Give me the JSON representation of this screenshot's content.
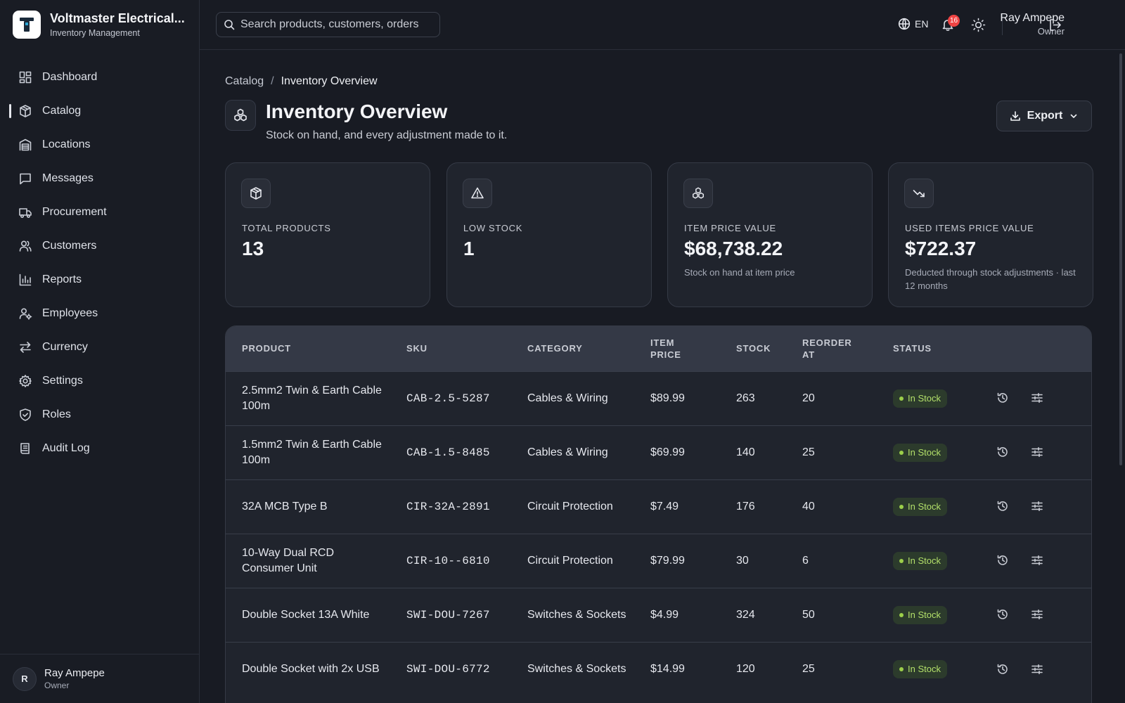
{
  "brand": {
    "name": "Voltmaster Electrical...",
    "subtitle": "Inventory Management"
  },
  "sidebar": {
    "items": [
      {
        "label": "Dashboard",
        "icon": "dashboard-icon",
        "active": false
      },
      {
        "label": "Catalog",
        "icon": "package-icon",
        "active": true
      },
      {
        "label": "Locations",
        "icon": "warehouse-icon",
        "active": false
      },
      {
        "label": "Messages",
        "icon": "message-icon",
        "active": false
      },
      {
        "label": "Procurement",
        "icon": "truck-icon",
        "active": false
      },
      {
        "label": "Customers",
        "icon": "users-icon",
        "active": false
      },
      {
        "label": "Reports",
        "icon": "bar-chart-icon",
        "active": false
      },
      {
        "label": "Employees",
        "icon": "user-cog-icon",
        "active": false
      },
      {
        "label": "Currency",
        "icon": "exchange-icon",
        "active": false
      },
      {
        "label": "Settings",
        "icon": "gear-icon",
        "active": false
      },
      {
        "label": "Roles",
        "icon": "shield-icon",
        "active": false
      },
      {
        "label": "Audit Log",
        "icon": "log-icon",
        "active": false
      }
    ],
    "user": {
      "initial": "R",
      "name": "Ray Ampepe",
      "role": "Owner"
    }
  },
  "topbar": {
    "search_placeholder": "Search products, customers, orders",
    "language": "EN",
    "notification_count": "16",
    "user": {
      "name": "Ray Ampepe",
      "role": "Owner"
    }
  },
  "breadcrumb": {
    "parent": "Catalog",
    "separator": "/",
    "current": "Inventory Overview"
  },
  "page": {
    "title": "Inventory Overview",
    "subtitle": "Stock on hand, and every adjustment made to it.",
    "export_label": "Export"
  },
  "cards": [
    {
      "label": "TOTAL PRODUCTS",
      "value": "13",
      "note": "",
      "icon": "package-icon"
    },
    {
      "label": "LOW STOCK",
      "value": "1",
      "note": "",
      "icon": "warning-icon"
    },
    {
      "label": "ITEM PRICE VALUE",
      "value": "$68,738.22",
      "note": "Stock on hand at item price",
      "icon": "boxes-icon"
    },
    {
      "label": "USED ITEMS PRICE VALUE",
      "value": "$722.37",
      "note": "Deducted through stock adjustments · last 12 months",
      "icon": "trending-down-icon"
    }
  ],
  "table": {
    "headers": {
      "product": "PRODUCT",
      "sku": "SKU",
      "category": "CATEGORY",
      "item_price": "ITEM PRICE",
      "stock": "STOCK",
      "reorder_at": "REORDER AT",
      "status": "STATUS"
    },
    "rows": [
      {
        "product": "2.5mm2 Twin & Earth Cable 100m",
        "sku": "CAB-2.5-5287",
        "category": "Cables & Wiring",
        "item_price": "$89.99",
        "stock": "263",
        "reorder_at": "20",
        "status": "In Stock"
      },
      {
        "product": "1.5mm2 Twin & Earth Cable 100m",
        "sku": "CAB-1.5-8485",
        "category": "Cables & Wiring",
        "item_price": "$69.99",
        "stock": "140",
        "reorder_at": "25",
        "status": "In Stock"
      },
      {
        "product": "32A MCB Type B",
        "sku": "CIR-32A-2891",
        "category": "Circuit Protection",
        "item_price": "$7.49",
        "stock": "176",
        "reorder_at": "40",
        "status": "In Stock"
      },
      {
        "product": "10-Way Dual RCD Consumer Unit",
        "sku": "CIR-10--6810",
        "category": "Circuit Protection",
        "item_price": "$79.99",
        "stock": "30",
        "reorder_at": "6",
        "status": "In Stock"
      },
      {
        "product": "Double Socket 13A White",
        "sku": "SWI-DOU-7267",
        "category": "Switches & Sockets",
        "item_price": "$4.99",
        "stock": "324",
        "reorder_at": "50",
        "status": "In Stock"
      },
      {
        "product": "Double Socket with 2x USB",
        "sku": "SWI-DOU-6772",
        "category": "Switches & Sockets",
        "item_price": "$14.99",
        "stock": "120",
        "reorder_at": "25",
        "status": "In Stock"
      }
    ]
  },
  "colors": {
    "background": "#181b23",
    "card": "#20242d",
    "status_in_stock_bg": "#2c3b2c",
    "status_in_stock_text": "#b3e06a",
    "badge": "#ef4444"
  }
}
